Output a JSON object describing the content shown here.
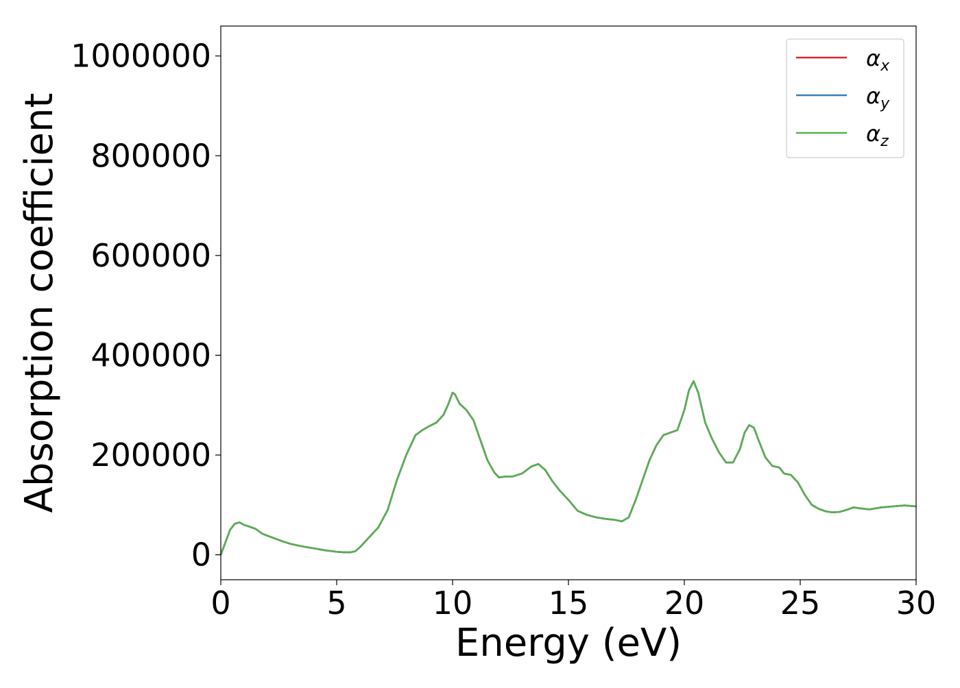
{
  "chart_data": {
    "type": "line",
    "title": "",
    "xlabel": "Energy (eV)",
    "ylabel": "Absorption coefficient",
    "xlim": [
      0,
      30
    ],
    "ylim": [
      -50000,
      1060000
    ],
    "xticks": [
      0,
      5,
      10,
      15,
      20,
      25,
      30
    ],
    "xtick_labels": [
      "0",
      "5",
      "10",
      "15",
      "20",
      "25",
      "30"
    ],
    "yticks": [
      0,
      200000,
      400000,
      600000,
      800000,
      1000000
    ],
    "ytick_labels": [
      "0",
      "200000",
      "400000",
      "600000",
      "800000",
      "1000000"
    ],
    "grid": false,
    "legend_position": "top-right",
    "x": [
      0,
      0.2,
      0.4,
      0.6,
      0.8,
      1.0,
      1.2,
      1.5,
      1.8,
      2.2,
      2.6,
      3.0,
      3.5,
      4.0,
      4.5,
      5.0,
      5.3,
      5.6,
      5.8,
      6.0,
      6.4,
      6.8,
      7.2,
      7.6,
      8.0,
      8.4,
      8.7,
      9.0,
      9.3,
      9.6,
      9.8,
      10.0,
      10.1,
      10.3,
      10.6,
      10.9,
      11.2,
      11.5,
      11.8,
      12.0,
      12.3,
      12.6,
      13.0,
      13.4,
      13.7,
      14.0,
      14.3,
      14.6,
      15.0,
      15.4,
      15.8,
      16.2,
      16.6,
      17.0,
      17.3,
      17.6,
      17.9,
      18.2,
      18.5,
      18.8,
      19.1,
      19.4,
      19.7,
      20.0,
      20.2,
      20.4,
      20.6,
      20.9,
      21.2,
      21.5,
      21.8,
      22.1,
      22.4,
      22.6,
      22.8,
      23.0,
      23.2,
      23.5,
      23.8,
      24.1,
      24.3,
      24.6,
      24.9,
      25.2,
      25.5,
      25.8,
      26.1,
      26.4,
      26.7,
      27.0,
      27.3,
      27.6,
      28.0,
      28.5,
      29.0,
      29.5,
      30.0
    ],
    "series": [
      {
        "name": "α",
        "sub": "x",
        "color": "#d62728",
        "values": [
          0,
          25000,
          50000,
          62000,
          65000,
          60000,
          57000,
          52000,
          42000,
          35000,
          28000,
          22000,
          17000,
          13000,
          9000,
          6000,
          5000,
          5000,
          7000,
          15000,
          35000,
          55000,
          90000,
          150000,
          200000,
          240000,
          250000,
          258000,
          265000,
          280000,
          300000,
          325000,
          322000,
          303000,
          290000,
          270000,
          230000,
          190000,
          165000,
          155000,
          157000,
          157000,
          163000,
          177000,
          182000,
          170000,
          148000,
          130000,
          110000,
          88000,
          80000,
          75000,
          72000,
          70000,
          67000,
          75000,
          110000,
          150000,
          190000,
          220000,
          240000,
          245000,
          250000,
          290000,
          330000,
          348000,
          325000,
          265000,
          232000,
          205000,
          185000,
          185000,
          212000,
          245000,
          260000,
          255000,
          230000,
          195000,
          178000,
          175000,
          163000,
          160000,
          145000,
          120000,
          100000,
          92000,
          87000,
          85000,
          86000,
          90000,
          95000,
          93000,
          91000,
          95000,
          97000,
          99000,
          97000
        ]
      },
      {
        "name": "α",
        "sub": "y",
        "color": "#377eb8",
        "values": [
          0,
          25000,
          50000,
          62000,
          65000,
          60000,
          57000,
          52000,
          42000,
          35000,
          28000,
          22000,
          17000,
          13000,
          9000,
          6000,
          5000,
          5000,
          7000,
          15000,
          35000,
          55000,
          90000,
          150000,
          200000,
          240000,
          250000,
          258000,
          265000,
          280000,
          300000,
          325000,
          322000,
          303000,
          290000,
          270000,
          230000,
          190000,
          165000,
          155000,
          157000,
          157000,
          163000,
          177000,
          182000,
          170000,
          148000,
          130000,
          110000,
          88000,
          80000,
          75000,
          72000,
          70000,
          67000,
          75000,
          110000,
          150000,
          190000,
          220000,
          240000,
          245000,
          250000,
          290000,
          330000,
          348000,
          325000,
          265000,
          232000,
          205000,
          185000,
          185000,
          212000,
          245000,
          260000,
          255000,
          230000,
          195000,
          178000,
          175000,
          163000,
          160000,
          145000,
          120000,
          100000,
          92000,
          87000,
          85000,
          86000,
          90000,
          95000,
          93000,
          91000,
          95000,
          97000,
          99000,
          97000
        ]
      },
      {
        "name": "α",
        "sub": "z",
        "color": "#5aad52",
        "values": [
          0,
          25000,
          50000,
          62000,
          65000,
          60000,
          57000,
          52000,
          42000,
          35000,
          28000,
          22000,
          17000,
          13000,
          9000,
          6000,
          5000,
          5000,
          7000,
          15000,
          35000,
          55000,
          90000,
          150000,
          200000,
          240000,
          250000,
          258000,
          265000,
          280000,
          300000,
          325000,
          322000,
          303000,
          290000,
          270000,
          230000,
          190000,
          165000,
          155000,
          157000,
          157000,
          163000,
          177000,
          182000,
          170000,
          148000,
          130000,
          110000,
          88000,
          80000,
          75000,
          72000,
          70000,
          67000,
          75000,
          110000,
          150000,
          190000,
          220000,
          240000,
          245000,
          250000,
          290000,
          330000,
          348000,
          325000,
          265000,
          232000,
          205000,
          185000,
          185000,
          212000,
          245000,
          260000,
          255000,
          230000,
          195000,
          178000,
          175000,
          163000,
          160000,
          145000,
          120000,
          100000,
          92000,
          87000,
          85000,
          86000,
          90000,
          95000,
          93000,
          91000,
          95000,
          97000,
          99000,
          97000
        ]
      }
    ]
  }
}
